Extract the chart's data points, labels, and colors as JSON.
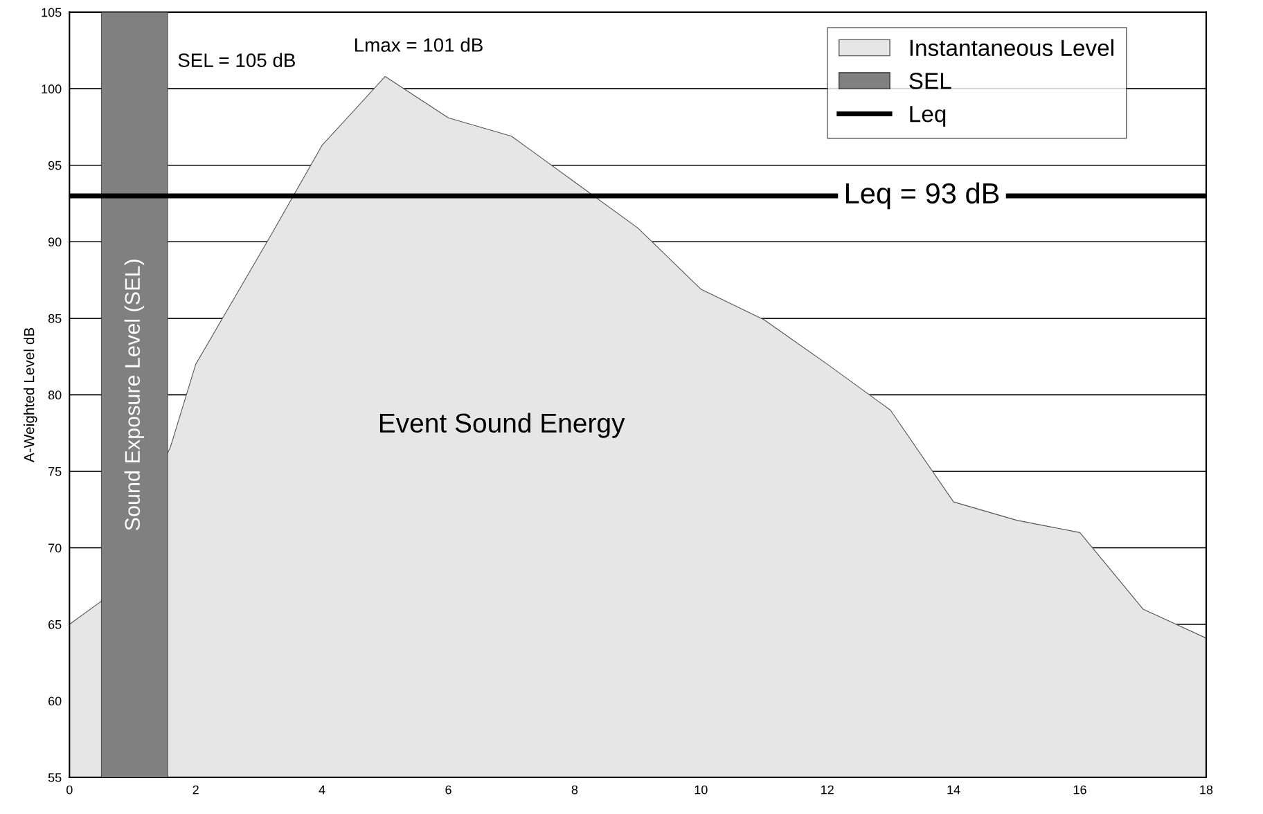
{
  "chart_data": {
    "type": "area",
    "ylabel": "A-Weighted Level dB",
    "xlim": [
      0,
      18
    ],
    "xticks": [
      0,
      2,
      4,
      6,
      8,
      10,
      12,
      14,
      16,
      18
    ],
    "ylim": [
      55,
      105
    ],
    "yticks": [
      55,
      60,
      65,
      70,
      75,
      80,
      85,
      90,
      95,
      100,
      105
    ],
    "grid": "y",
    "legend": "top right",
    "series": [
      {
        "name": "Instantaneous Level",
        "color": "#e6e6e6",
        "x": [
          0,
          0.5,
          1.6,
          2,
          3.2,
          4,
          5,
          6,
          7,
          8,
          9,
          10,
          11,
          12,
          13,
          14,
          15,
          16,
          17,
          18
        ],
        "values": [
          65,
          66.5,
          76.6,
          82,
          90.5,
          96.3,
          100.8,
          98.1,
          96.9,
          93.9,
          90.9,
          86.9,
          84.9,
          82,
          79,
          73,
          71.8,
          71,
          66,
          64.1
        ]
      },
      {
        "name": "SEL",
        "type": "bar",
        "color": "#808080",
        "x": [
          1.03
        ],
        "values": [
          105
        ]
      },
      {
        "name": "Leq",
        "type": "line",
        "color": "#000000",
        "x": [
          0,
          18
        ],
        "values": [
          93,
          93
        ]
      }
    ],
    "annotations": [
      "SEL = 105 dB",
      "Lmax = 101 dB",
      {
        "text": "Leq = 93 dB",
        "x": 13.5,
        "y": 93
      },
      "Sound Exposure Level (SEL)",
      "Event Sound Energy"
    ]
  }
}
